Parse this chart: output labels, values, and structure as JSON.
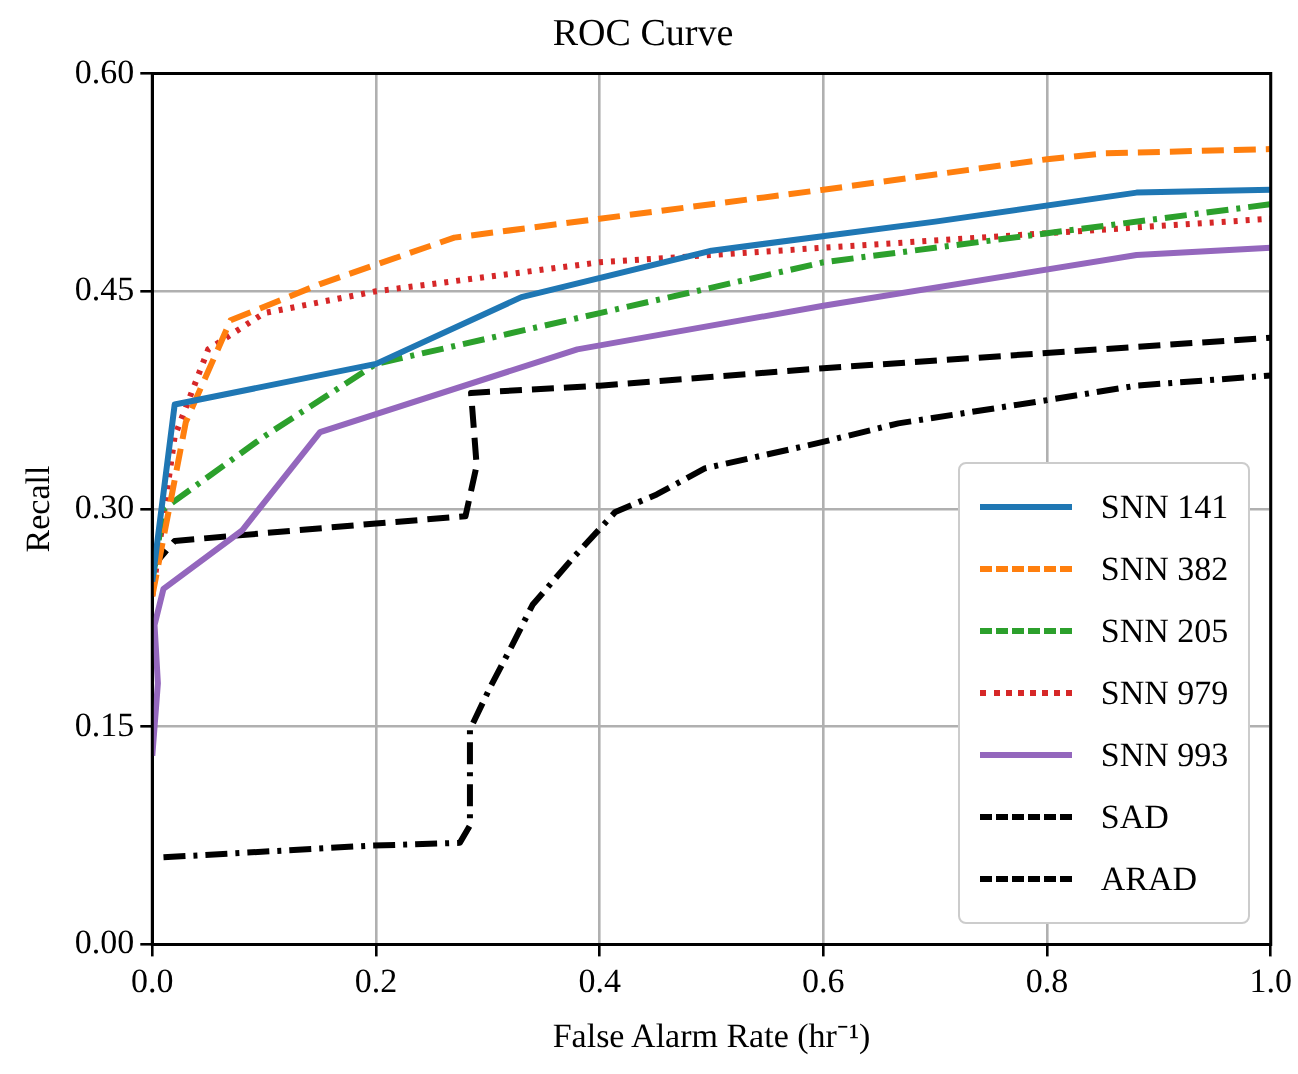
{
  "chart_data": {
    "type": "line",
    "title": "ROC Curve",
    "xlabel": "False Alarm Rate (hr⁻¹)",
    "ylabel": "Recall",
    "xlim": [
      0,
      1
    ],
    "ylim": [
      0,
      0.6
    ],
    "xticks": [
      {
        "value": 0,
        "label": "0.0"
      },
      {
        "value": 0.2,
        "label": "0.2"
      },
      {
        "value": 0.4,
        "label": "0.4"
      },
      {
        "value": 0.6,
        "label": "0.6"
      },
      {
        "value": 0.8,
        "label": "0.8"
      },
      {
        "value": 1,
        "label": "1.0"
      }
    ],
    "yticks": [
      {
        "value": 0,
        "label": "0.00"
      },
      {
        "value": 0.15,
        "label": "0.15"
      },
      {
        "value": 0.3,
        "label": "0.30"
      },
      {
        "value": 0.45,
        "label": "0.45"
      },
      {
        "value": 0.6,
        "label": "0.60"
      }
    ],
    "grid": true,
    "legend": "bottom right",
    "marker": "none",
    "series": [
      {
        "name": "SNN 141",
        "color": "#1f77b4",
        "line_style": "solid",
        "x": [
          0,
          0.02,
          0.2,
          0.33,
          0.5,
          0.7,
          0.88,
          1
        ],
        "values": [
          0.25,
          0.372,
          0.4,
          0.446,
          0.478,
          0.498,
          0.518,
          0.52
        ]
      },
      {
        "name": "SNN 382",
        "color": "#ff7f0e",
        "line_style": "dashed",
        "x": [
          0,
          0.03,
          0.07,
          0.15,
          0.27,
          0.4,
          0.6,
          0.8,
          0.85,
          1
        ],
        "values": [
          0.24,
          0.36,
          0.43,
          0.455,
          0.487,
          0.5,
          0.52,
          0.541,
          0.545,
          0.548
        ]
      },
      {
        "name": "SNN 205",
        "color": "#2ca02c",
        "line_style": "dashdot",
        "x": [
          0,
          0.01,
          0.1,
          0.2,
          0.4,
          0.6,
          0.8,
          1
        ],
        "values": [
          0.25,
          0.3,
          0.35,
          0.4,
          0.435,
          0.47,
          0.49,
          0.51
        ]
      },
      {
        "name": "SNN 979",
        "color": "#d62728",
        "line_style": "dotted",
        "x": [
          0,
          0.02,
          0.05,
          0.1,
          0.2,
          0.3,
          0.4,
          0.6,
          0.8,
          1
        ],
        "values": [
          0.24,
          0.35,
          0.41,
          0.435,
          0.45,
          0.46,
          0.47,
          0.48,
          0.49,
          0.5
        ]
      },
      {
        "name": "SNN 993",
        "color": "#9467bd",
        "line_style": "solid",
        "x": [
          0,
          0.005,
          0.002,
          0.01,
          0.08,
          0.15,
          0.38,
          0.6,
          0.88,
          1
        ],
        "values": [
          0.13,
          0.18,
          0.22,
          0.245,
          0.285,
          0.353,
          0.41,
          0.44,
          0.475,
          0.48
        ]
      },
      {
        "name": "SAD",
        "color": "#000000",
        "line_style": "dashed",
        "x": [
          0,
          0.02,
          0.2,
          0.28,
          0.29,
          0.285,
          0.4,
          0.6,
          1
        ],
        "values": [
          0.26,
          0.278,
          0.29,
          0.295,
          0.33,
          0.38,
          0.385,
          0.397,
          0.418
        ]
      },
      {
        "name": "ARAD",
        "color": "#000000",
        "line_style": "dashdot",
        "x": [
          0.01,
          0.194,
          0.275,
          0.284,
          0.284,
          0.302,
          0.321,
          0.34,
          0.377,
          0.414,
          0.451,
          0.494,
          0.593,
          0.667,
          0.8,
          0.88,
          1
        ],
        "values": [
          0.06,
          0.068,
          0.07,
          0.082,
          0.148,
          0.177,
          0.205,
          0.234,
          0.267,
          0.298,
          0.31,
          0.328,
          0.345,
          0.359,
          0.375,
          0.385,
          0.392
        ]
      }
    ]
  }
}
